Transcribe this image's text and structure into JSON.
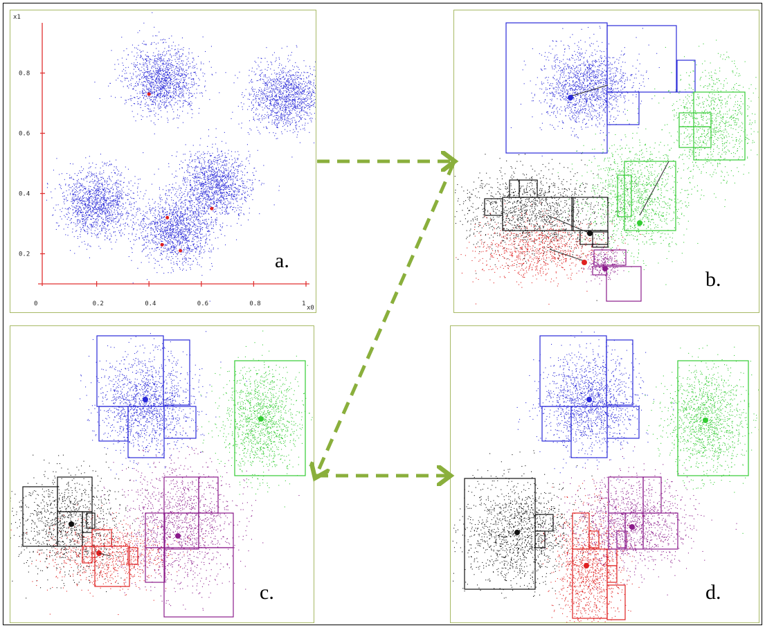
{
  "panels": {
    "a": {
      "label": "a.",
      "x_ticks": [
        "0",
        "0.2",
        "0.4",
        "0.6",
        "0.8",
        "1"
      ],
      "y_ticks": [
        "0.2",
        "0.4",
        "0.6",
        "0.8"
      ],
      "x_axis_label": "x0",
      "y_axis_label": "x1"
    },
    "b": {
      "label": "b."
    },
    "c": {
      "label": "c."
    },
    "d": {
      "label": "d."
    }
  },
  "colors": {
    "panel_border": "#a7b965",
    "arrow": "#8aaf3c",
    "axis": "#e03030",
    "blue": "#2a2ad8",
    "green": "#33cc33",
    "black": "#111111",
    "red": "#e02020",
    "purple": "#8a1a8a"
  },
  "chart_data": {
    "type": "scatter",
    "clusters_panel_a": [
      {
        "center": [
          0.45,
          0.78
        ]
      },
      {
        "center": [
          0.92,
          0.72
        ]
      },
      {
        "center": [
          0.2,
          0.37
        ]
      },
      {
        "center": [
          0.65,
          0.43
        ]
      },
      {
        "center": [
          0.5,
          0.28
        ]
      }
    ],
    "initial_centroids_panel_a": [
      [
        0.4,
        0.73
      ],
      [
        0.47,
        0.32
      ],
      [
        0.45,
        0.23
      ],
      [
        0.52,
        0.21
      ],
      [
        0.64,
        0.35
      ]
    ],
    "xlim": [
      0,
      1
    ],
    "ylim": [
      0.1,
      0.9
    ]
  }
}
